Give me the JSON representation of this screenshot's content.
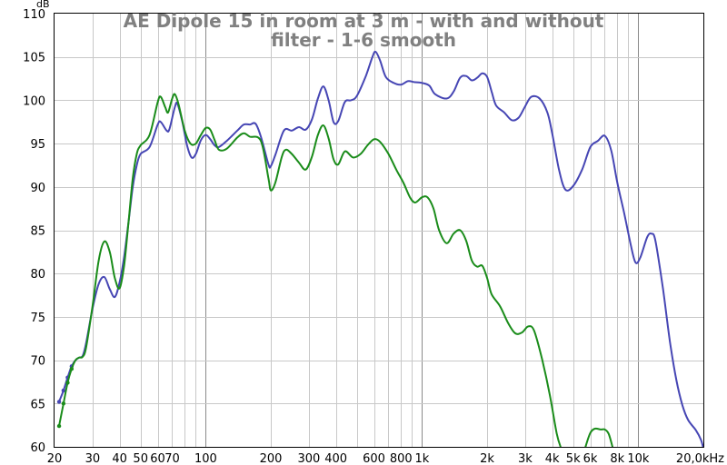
{
  "chart_data": {
    "type": "line",
    "title_lines": [
      "AE Dipole 15 in room at 3 m - with and without",
      "filter - 1-6 smooth"
    ],
    "y_unit": "dB",
    "x_scale": "log",
    "xlim": [
      20,
      20000
    ],
    "ylim": [
      60,
      110
    ],
    "grid": true,
    "legend": "none",
    "y_ticks": [
      60,
      65,
      70,
      75,
      80,
      85,
      90,
      95,
      100,
      105,
      110
    ],
    "x_ticks": [
      {
        "v": 20,
        "label": "20"
      },
      {
        "v": 30,
        "label": "30"
      },
      {
        "v": 40,
        "label": "40"
      },
      {
        "v": 50,
        "label": "50"
      },
      {
        "v": 60,
        "label": "60"
      },
      {
        "v": 70,
        "label": "70"
      },
      {
        "v": 100,
        "label": "100"
      },
      {
        "v": 200,
        "label": "200"
      },
      {
        "v": 300,
        "label": "300"
      },
      {
        "v": 400,
        "label": "400"
      },
      {
        "v": 600,
        "label": "600"
      },
      {
        "v": 800,
        "label": "800"
      },
      {
        "v": 1000,
        "label": "1k"
      },
      {
        "v": 2000,
        "label": "2k"
      },
      {
        "v": 3000,
        "label": "3k"
      },
      {
        "v": 4000,
        "label": "4k"
      },
      {
        "v": 5000,
        "label": "5k"
      },
      {
        "v": 6000,
        "label": "6k"
      },
      {
        "v": 8000,
        "label": "8k"
      },
      {
        "v": 10000,
        "label": "10k"
      },
      {
        "v": 20000,
        "label": "20,0kHz"
      }
    ],
    "series": [
      {
        "color": "#4646b4",
        "points": [
          [
            21,
            65.2
          ],
          [
            22,
            66.5
          ],
          [
            23,
            68.0
          ],
          [
            24,
            69.3
          ],
          [
            25,
            70.0
          ],
          [
            26,
            70.3
          ],
          [
            27,
            70.5
          ],
          [
            28,
            72.0
          ],
          [
            30,
            76.0
          ],
          [
            32,
            78.8
          ],
          [
            34,
            79.6
          ],
          [
            36,
            78.2
          ],
          [
            38,
            77.3
          ],
          [
            40,
            79.0
          ],
          [
            42,
            82.0
          ],
          [
            44,
            86.0
          ],
          [
            46,
            90.0
          ],
          [
            48,
            92.5
          ],
          [
            50,
            93.8
          ],
          [
            55,
            94.6
          ],
          [
            60,
            97.2
          ],
          [
            62,
            97.5
          ],
          [
            66,
            96.5
          ],
          [
            68,
            96.7
          ],
          [
            72,
            99.2
          ],
          [
            74,
            99.6
          ],
          [
            78,
            97.5
          ],
          [
            82,
            94.8
          ],
          [
            86,
            93.4
          ],
          [
            90,
            93.8
          ],
          [
            95,
            95.4
          ],
          [
            100,
            96.0
          ],
          [
            105,
            95.5
          ],
          [
            110,
            94.8
          ],
          [
            115,
            94.6
          ],
          [
            125,
            95.3
          ],
          [
            140,
            96.5
          ],
          [
            150,
            97.2
          ],
          [
            160,
            97.2
          ],
          [
            170,
            97.3
          ],
          [
            180,
            95.8
          ],
          [
            195,
            92.6
          ],
          [
            200,
            92.4
          ],
          [
            210,
            93.7
          ],
          [
            230,
            96.5
          ],
          [
            250,
            96.5
          ],
          [
            270,
            96.9
          ],
          [
            290,
            96.6
          ],
          [
            310,
            97.8
          ],
          [
            330,
            100.2
          ],
          [
            350,
            101.6
          ],
          [
            370,
            100.0
          ],
          [
            390,
            97.5
          ],
          [
            410,
            97.6
          ],
          [
            440,
            99.8
          ],
          [
            470,
            100.0
          ],
          [
            500,
            100.5
          ],
          [
            550,
            102.8
          ],
          [
            590,
            105.0
          ],
          [
            610,
            105.6
          ],
          [
            640,
            104.6
          ],
          [
            680,
            102.7
          ],
          [
            740,
            102.0
          ],
          [
            800,
            101.8
          ],
          [
            860,
            102.2
          ],
          [
            920,
            102.1
          ],
          [
            1000,
            102.0
          ],
          [
            1080,
            101.7
          ],
          [
            1150,
            100.7
          ],
          [
            1300,
            100.2
          ],
          [
            1400,
            101.0
          ],
          [
            1500,
            102.6
          ],
          [
            1600,
            102.8
          ],
          [
            1700,
            102.3
          ],
          [
            1800,
            102.6
          ],
          [
            1900,
            103.1
          ],
          [
            2000,
            102.7
          ],
          [
            2100,
            101.0
          ],
          [
            2200,
            99.4
          ],
          [
            2400,
            98.6
          ],
          [
            2600,
            97.7
          ],
          [
            2800,
            98.0
          ],
          [
            3000,
            99.3
          ],
          [
            3200,
            100.4
          ],
          [
            3500,
            100.2
          ],
          [
            3800,
            98.6
          ],
          [
            4000,
            96.2
          ],
          [
            4300,
            92.0
          ],
          [
            4600,
            89.7
          ],
          [
            5000,
            90.1
          ],
          [
            5500,
            92.0
          ],
          [
            6000,
            94.6
          ],
          [
            6500,
            95.3
          ],
          [
            7000,
            95.9
          ],
          [
            7500,
            94.2
          ],
          [
            8000,
            90.5
          ],
          [
            8600,
            87.0
          ],
          [
            9200,
            83.5
          ],
          [
            9700,
            81.3
          ],
          [
            10200,
            81.8
          ],
          [
            11000,
            84.2
          ],
          [
            11500,
            84.6
          ],
          [
            12000,
            83.8
          ],
          [
            13000,
            78.3
          ],
          [
            14000,
            72.2
          ],
          [
            15000,
            67.7
          ],
          [
            16000,
            64.8
          ],
          [
            17000,
            63.1
          ],
          [
            18500,
            61.9
          ],
          [
            19500,
            60.8
          ],
          [
            20000,
            59.8
          ]
        ]
      },
      {
        "color": "#1a8c1a",
        "points": [
          [
            21,
            62.4
          ],
          [
            22,
            65.0
          ],
          [
            23,
            67.4
          ],
          [
            24,
            69.0
          ],
          [
            25,
            70.0
          ],
          [
            26,
            70.3
          ],
          [
            27,
            70.4
          ],
          [
            28,
            71.5
          ],
          [
            30,
            76.3
          ],
          [
            32,
            81.5
          ],
          [
            34,
            83.7
          ],
          [
            36,
            82.5
          ],
          [
            38,
            79.5
          ],
          [
            40,
            78.3
          ],
          [
            42,
            81.0
          ],
          [
            44,
            86.0
          ],
          [
            46,
            91.0
          ],
          [
            48,
            93.8
          ],
          [
            50,
            94.8
          ],
          [
            55,
            96.0
          ],
          [
            60,
            99.8
          ],
          [
            62,
            100.4
          ],
          [
            65,
            99.2
          ],
          [
            67,
            98.6
          ],
          [
            70,
            100.2
          ],
          [
            72,
            100.7
          ],
          [
            75,
            99.5
          ],
          [
            80,
            96.5
          ],
          [
            85,
            95.0
          ],
          [
            90,
            95.0
          ],
          [
            95,
            96.0
          ],
          [
            100,
            96.8
          ],
          [
            105,
            96.6
          ],
          [
            110,
            95.4
          ],
          [
            115,
            94.3
          ],
          [
            125,
            94.4
          ],
          [
            140,
            95.7
          ],
          [
            150,
            96.2
          ],
          [
            160,
            95.8
          ],
          [
            180,
            95.3
          ],
          [
            195,
            91.0
          ],
          [
            200,
            89.6
          ],
          [
            210,
            90.5
          ],
          [
            225,
            93.5
          ],
          [
            235,
            94.3
          ],
          [
            250,
            93.8
          ],
          [
            270,
            92.8
          ],
          [
            290,
            92.0
          ],
          [
            310,
            93.5
          ],
          [
            330,
            96.0
          ],
          [
            350,
            97.1
          ],
          [
            370,
            95.6
          ],
          [
            390,
            93.2
          ],
          [
            410,
            92.6
          ],
          [
            440,
            94.1
          ],
          [
            480,
            93.4
          ],
          [
            520,
            93.8
          ],
          [
            560,
            94.8
          ],
          [
            600,
            95.5
          ],
          [
            640,
            95.2
          ],
          [
            700,
            93.8
          ],
          [
            760,
            92.0
          ],
          [
            820,
            90.5
          ],
          [
            880,
            88.8
          ],
          [
            930,
            88.2
          ],
          [
            1000,
            88.8
          ],
          [
            1060,
            88.8
          ],
          [
            1130,
            87.5
          ],
          [
            1200,
            85.0
          ],
          [
            1300,
            83.5
          ],
          [
            1400,
            84.6
          ],
          [
            1500,
            85.0
          ],
          [
            1600,
            83.8
          ],
          [
            1700,
            81.5
          ],
          [
            1800,
            80.8
          ],
          [
            1900,
            80.9
          ],
          [
            2000,
            79.5
          ],
          [
            2100,
            77.6
          ],
          [
            2300,
            76.2
          ],
          [
            2500,
            74.3
          ],
          [
            2700,
            73.1
          ],
          [
            2900,
            73.2
          ],
          [
            3100,
            73.9
          ],
          [
            3300,
            73.4
          ],
          [
            3600,
            70.0
          ],
          [
            3900,
            66.0
          ],
          [
            4200,
            61.5
          ],
          [
            4400,
            59.8
          ]
        ]
      },
      {
        "color": "#1a8c1a",
        "points": [
          [
            5700,
            60.0
          ],
          [
            6000,
            61.6
          ],
          [
            6300,
            62.1
          ],
          [
            6700,
            62.0
          ],
          [
            7000,
            62.0
          ],
          [
            7300,
            61.5
          ],
          [
            7600,
            60.0
          ]
        ]
      }
    ]
  }
}
